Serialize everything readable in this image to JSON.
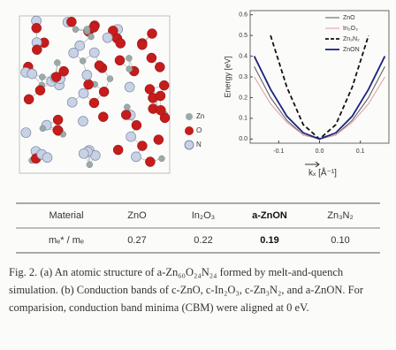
{
  "atom_legend": [
    "Zn",
    "O",
    "N"
  ],
  "chart_data": {
    "type": "line",
    "ylabel": "Energy [eV]",
    "xlabel": "kₓ [Å⁻¹]",
    "x": [
      -0.16,
      -0.12,
      -0.08,
      -0.04,
      0,
      0.04,
      0.08,
      0.12,
      0.16
    ],
    "series": [
      {
        "name": "ZnO",
        "color": "#555555",
        "style": "solid",
        "width": 1,
        "values": [
          0.35,
          0.2,
          0.09,
          0.02,
          0,
          0.02,
          0.09,
          0.2,
          0.35
        ]
      },
      {
        "name": "In₂O₃",
        "color": "#e39a9a",
        "style": "solid",
        "width": 1,
        "values": [
          0.3,
          0.17,
          0.08,
          0.02,
          0,
          0.02,
          0.08,
          0.17,
          0.3
        ]
      },
      {
        "name": "Zn₃N₂",
        "color": "#111111",
        "style": "dashed",
        "width": 1.8,
        "values": [
          null,
          0.5,
          0.25,
          0.07,
          0,
          0.07,
          0.25,
          0.5,
          null
        ]
      },
      {
        "name": "ZnON",
        "color": "#1a237e",
        "style": "solid",
        "width": 1.8,
        "values": [
          0.4,
          0.24,
          0.11,
          0.03,
          0,
          0.03,
          0.11,
          0.24,
          0.4
        ]
      }
    ],
    "xlim": [
      -0.17,
      0.17
    ],
    "ylim": [
      -0.02,
      0.62
    ],
    "xticks": [
      -0.1,
      {
        "value": 0,
        "label": "0.0"
      },
      0.1
    ],
    "yticks": [
      {
        "value": 0,
        "label": "0.0"
      },
      0.1,
      0.2,
      0.3,
      0.4,
      0.5,
      0.6
    ],
    "legend": "upper right"
  },
  "table": {
    "header": [
      "Material",
      "ZnO",
      "In₂O₃",
      "a-ZnON",
      "Zn₃N₂"
    ],
    "rows": [
      [
        "mₑ* / mₑ",
        "0.27",
        "0.22",
        "0.19",
        "0.10"
      ]
    ]
  },
  "caption": "Fig. 2. (a) An atomic structure of a-Zn₆₀O₂₄N₂₄ formed by melt-and-quench simulation. (b) Conduction bands of c-ZnO, c-In₂O₃, c-Zn₃N₂, and a-ZnON. For comparision, conduction band minima (CBM) were aligned at 0 eV."
}
